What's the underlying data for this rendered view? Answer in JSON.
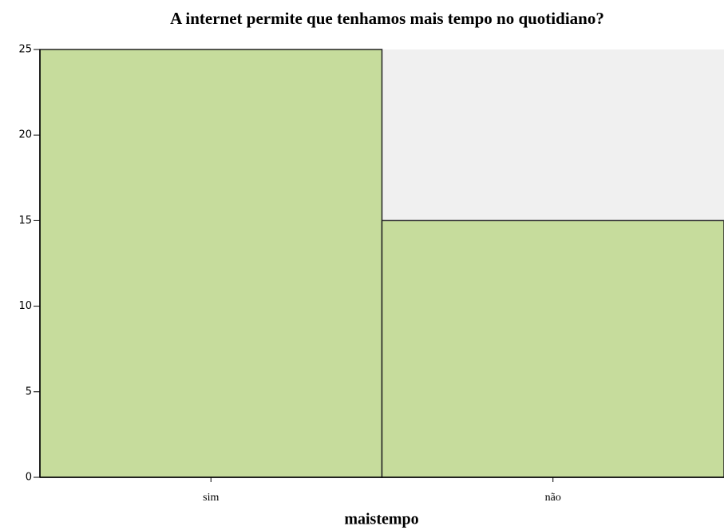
{
  "chart_data": {
    "type": "bar",
    "title": "A internet permite que tenhamos mais tempo no quotidiano?",
    "x_label": "maistempo",
    "categories": [
      "sim",
      "não"
    ],
    "values": [
      25,
      15
    ],
    "color": "#c6dc9c",
    "ylim": [
      0,
      25
    ],
    "yticks": [
      0,
      5,
      10,
      15,
      20,
      25
    ],
    "grid": false
  }
}
